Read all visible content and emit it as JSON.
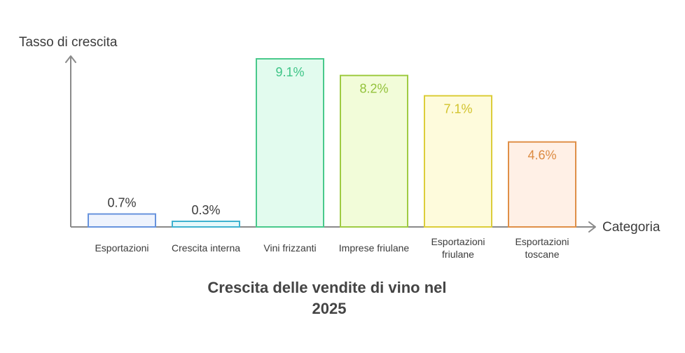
{
  "chart_data": {
    "type": "bar",
    "title": "Crescita delle vendite di vino nel 2025",
    "title_lines": [
      "Crescita delle vendite di vino nel",
      "2025"
    ],
    "xlabel": "Categoria",
    "ylabel": "Tasso di crescita",
    "ylim": [
      0,
      9.1
    ],
    "grid": false,
    "categories": [
      {
        "label_lines": [
          "Esportazioni"
        ],
        "value": 0.7,
        "value_label": "0.7%",
        "fill": "#eef3fd",
        "stroke": "#6793dd",
        "text_color": "#3b3b3b"
      },
      {
        "label_lines": [
          "Crescita interna"
        ],
        "value": 0.3,
        "value_label": "0.3%",
        "fill": "#e6f8fb",
        "stroke": "#3fb2cf",
        "text_color": "#3b3b3b"
      },
      {
        "label_lines": [
          "Vini frizzanti"
        ],
        "value": 9.1,
        "value_label": "9.1%",
        "fill": "#e2fbee",
        "stroke": "#49c98b",
        "text_color": "#3ec587"
      },
      {
        "label_lines": [
          "Imprese friulane"
        ],
        "value": 8.2,
        "value_label": "8.2%",
        "fill": "#f2fcd9",
        "stroke": "#9fcb43",
        "text_color": "#93c23b"
      },
      {
        "label_lines": [
          "Esportazioni",
          "friulane"
        ],
        "value": 7.1,
        "value_label": "7.1%",
        "fill": "#fefbdc",
        "stroke": "#dccd3a",
        "text_color": "#d2c32c"
      },
      {
        "label_lines": [
          "Esportazioni",
          "toscane"
        ],
        "value": 4.6,
        "value_label": "4.6%",
        "fill": "#fff0e6",
        "stroke": "#df8f47",
        "text_color": "#dc8a40"
      }
    ],
    "colors": {
      "axis": "#8a8a8a",
      "text": "#3b3b3b",
      "title": "#444444"
    }
  }
}
